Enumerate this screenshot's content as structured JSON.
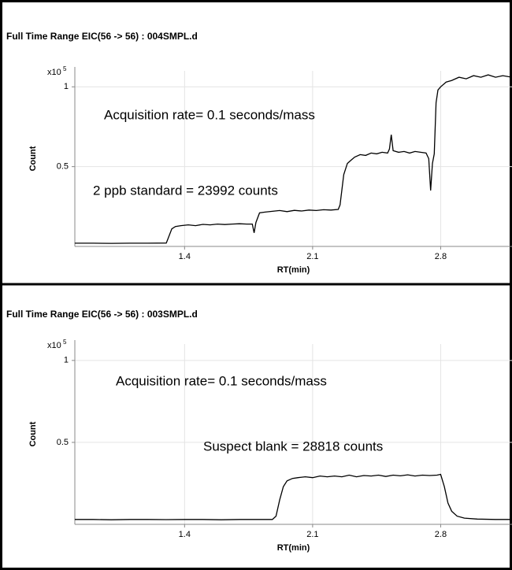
{
  "chart_data": [
    {
      "type": "line",
      "title": "Full Time Range EIC(56 -> 56) : 004SMPL.d",
      "x_label": "RT(min)",
      "y_label": "Count",
      "scale_label": "x10",
      "scale_exponent": "5",
      "annotations": [
        "Acquisition rate= 0.1 seconds/mass",
        "2 ppb standard = 23992 counts"
      ],
      "xlim": [
        0.8,
        3.19
      ],
      "ylim": [
        0,
        1.1
      ],
      "xticks": [
        1.4,
        2.1,
        2.8
      ],
      "yticks": [
        0.5,
        1
      ],
      "grid": true,
      "color": "#000000",
      "x": [
        0.8,
        0.9,
        1.0,
        1.1,
        1.2,
        1.3,
        1.31,
        1.33,
        1.35,
        1.38,
        1.42,
        1.46,
        1.5,
        1.54,
        1.58,
        1.62,
        1.66,
        1.7,
        1.74,
        1.77,
        1.78,
        1.79,
        1.81,
        1.84,
        1.88,
        1.92,
        1.96,
        2.0,
        2.04,
        2.08,
        2.12,
        2.16,
        2.2,
        2.24,
        2.25,
        2.27,
        2.29,
        2.31,
        2.33,
        2.36,
        2.39,
        2.42,
        2.45,
        2.48,
        2.51,
        2.52,
        2.53,
        2.54,
        2.57,
        2.6,
        2.63,
        2.66,
        2.69,
        2.72,
        2.735,
        2.745,
        2.755,
        2.765,
        2.775,
        2.785,
        2.8,
        2.83,
        2.86,
        2.9,
        2.94,
        2.98,
        3.02,
        3.06,
        3.1,
        3.14,
        3.19
      ],
      "values": [
        0.02,
        0.02,
        0.019,
        0.02,
        0.02,
        0.021,
        0.05,
        0.11,
        0.125,
        0.13,
        0.135,
        0.13,
        0.138,
        0.135,
        0.14,
        0.137,
        0.14,
        0.142,
        0.14,
        0.14,
        0.085,
        0.15,
        0.21,
        0.215,
        0.22,
        0.225,
        0.218,
        0.226,
        0.222,
        0.228,
        0.225,
        0.23,
        0.228,
        0.232,
        0.26,
        0.45,
        0.52,
        0.54,
        0.56,
        0.575,
        0.57,
        0.585,
        0.58,
        0.59,
        0.585,
        0.61,
        0.7,
        0.6,
        0.59,
        0.595,
        0.585,
        0.595,
        0.59,
        0.585,
        0.55,
        0.35,
        0.52,
        0.58,
        0.9,
        0.98,
        1.0,
        1.03,
        1.04,
        1.06,
        1.05,
        1.07,
        1.06,
        1.075,
        1.06,
        1.07,
        1.06
      ]
    },
    {
      "type": "line",
      "title": "Full Time Range EIC(56 -> 56) : 003SMPL.d",
      "x_label": "RT(min)",
      "y_label": "Count",
      "scale_label": "x10",
      "scale_exponent": "5",
      "annotations": [
        "Acquisition rate= 0.1 seconds/mass",
        "Suspect blank = 28818 counts"
      ],
      "xlim": [
        0.8,
        3.19
      ],
      "ylim": [
        0,
        1.1
      ],
      "xticks": [
        1.4,
        2.1,
        2.8
      ],
      "yticks": [
        0.5,
        1
      ],
      "grid": true,
      "color": "#000000",
      "x": [
        0.8,
        0.9,
        1.0,
        1.1,
        1.2,
        1.3,
        1.4,
        1.5,
        1.6,
        1.7,
        1.8,
        1.88,
        1.9,
        1.92,
        1.94,
        1.96,
        1.99,
        2.02,
        2.06,
        2.1,
        2.14,
        2.18,
        2.22,
        2.26,
        2.3,
        2.34,
        2.38,
        2.42,
        2.46,
        2.5,
        2.54,
        2.58,
        2.62,
        2.66,
        2.7,
        2.74,
        2.78,
        2.8,
        2.82,
        2.84,
        2.86,
        2.89,
        2.93,
        3.0,
        3.1,
        3.19
      ],
      "values": [
        0.03,
        0.03,
        0.028,
        0.03,
        0.03,
        0.029,
        0.03,
        0.03,
        0.028,
        0.03,
        0.03,
        0.03,
        0.05,
        0.15,
        0.23,
        0.265,
        0.28,
        0.285,
        0.29,
        0.285,
        0.295,
        0.29,
        0.295,
        0.29,
        0.3,
        0.29,
        0.298,
        0.295,
        0.3,
        0.292,
        0.3,
        0.296,
        0.302,
        0.295,
        0.3,
        0.298,
        0.3,
        0.305,
        0.23,
        0.13,
        0.08,
        0.05,
        0.038,
        0.032,
        0.03,
        0.03
      ]
    }
  ]
}
